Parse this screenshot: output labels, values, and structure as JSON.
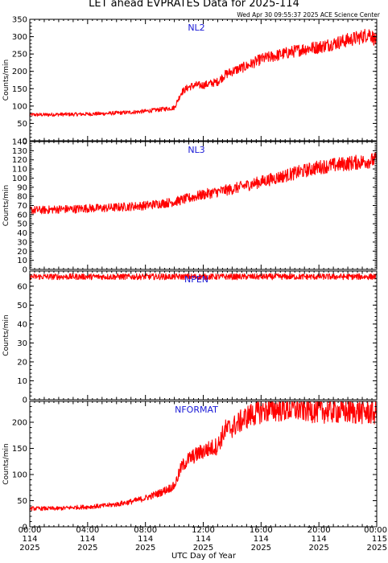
{
  "title": "LET ahead EVPRATES Data for 2025-114",
  "subtitle": "Wed Apr 30 09:55:37 2025 ACE Science Center",
  "xlabel": "UTC Day of Year",
  "ylabel": "Counts/min",
  "colors": {
    "trace": "#ff0000",
    "panel_label": "#1a1ad6",
    "axes": "#000000"
  },
  "x_ticks": [
    {
      "time": "00:00",
      "doy": "114",
      "year": "2025"
    },
    {
      "time": "04:00",
      "doy": "114",
      "year": "2025"
    },
    {
      "time": "08:00",
      "doy": "114",
      "year": "2025"
    },
    {
      "time": "12:00",
      "doy": "114",
      "year": "2025"
    },
    {
      "time": "16:00",
      "doy": "114",
      "year": "2025"
    },
    {
      "time": "20:00",
      "doy": "114",
      "year": "2025"
    },
    {
      "time": "00:00",
      "doy": "115",
      "year": "2025"
    }
  ],
  "chart_data": [
    {
      "type": "line",
      "name": "NL2",
      "xlim": [
        0,
        24
      ],
      "ylim": [
        0,
        350
      ],
      "yticks": [
        0,
        50,
        100,
        150,
        200,
        250,
        300,
        350
      ],
      "x": [
        0,
        1,
        2,
        3,
        4,
        5,
        6,
        7,
        8,
        9,
        10,
        10.5,
        11,
        11.5,
        12,
        12.5,
        13,
        13.5,
        14,
        15,
        16,
        17,
        18,
        19,
        20,
        21,
        22,
        23,
        23.5,
        24
      ],
      "y": [
        75,
        75,
        76,
        76,
        77,
        78,
        80,
        82,
        85,
        90,
        95,
        140,
        155,
        160,
        160,
        165,
        170,
        190,
        200,
        215,
        235,
        245,
        255,
        265,
        270,
        280,
        290,
        300,
        310,
        285
      ]
    },
    {
      "type": "line",
      "name": "NL3",
      "xlim": [
        0,
        24
      ],
      "ylim": [
        0,
        140
      ],
      "yticks": [
        0,
        10,
        20,
        30,
        40,
        50,
        60,
        70,
        80,
        90,
        100,
        110,
        120,
        130,
        140
      ],
      "x": [
        0,
        1,
        2,
        3,
        4,
        5,
        6,
        7,
        8,
        9,
        10,
        11,
        12,
        13,
        14,
        15,
        16,
        17,
        18,
        19,
        20,
        21,
        22,
        23,
        24
      ],
      "y": [
        65,
        65,
        66,
        66,
        67,
        67,
        68,
        69,
        70,
        72,
        74,
        78,
        82,
        85,
        88,
        92,
        96,
        100,
        104,
        108,
        112,
        114,
        116,
        118,
        120
      ]
    },
    {
      "type": "line",
      "name": "NPEN",
      "xlim": [
        0,
        24
      ],
      "ylim": [
        0,
        68
      ],
      "yticks": [
        0,
        10,
        20,
        30,
        40,
        50,
        60
      ],
      "x": [
        0,
        4,
        8,
        12,
        16,
        20,
        24
      ],
      "y": [
        65,
        65,
        65,
        65,
        65,
        65,
        65
      ]
    },
    {
      "type": "line",
      "name": "NFORMAT",
      "xlim": [
        0,
        24
      ],
      "ylim": [
        0,
        240
      ],
      "yticks": [
        0,
        50,
        100,
        150,
        200
      ],
      "x": [
        0,
        1,
        2,
        3,
        4,
        5,
        6,
        7,
        8,
        9,
        10,
        10.5,
        11,
        12,
        13,
        13.5,
        14,
        14.5,
        15,
        16,
        17,
        18,
        19,
        20,
        21,
        22,
        23,
        24
      ],
      "y": [
        35,
        35,
        35,
        37,
        38,
        40,
        43,
        48,
        55,
        65,
        78,
        115,
        130,
        145,
        155,
        185,
        190,
        200,
        210,
        222,
        225,
        225,
        225,
        222,
        222,
        220,
        220,
        218
      ]
    }
  ]
}
